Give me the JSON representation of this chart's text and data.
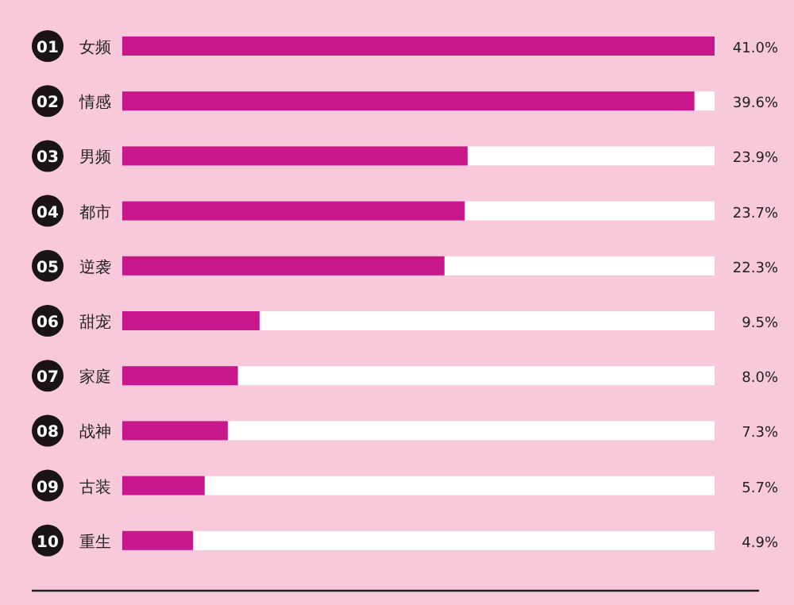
{
  "chart_data": {
    "type": "bar",
    "orientation": "horizontal",
    "categories": [
      "女频",
      "情感",
      "男频",
      "都市",
      "逆袭",
      "甜宠",
      "家庭",
      "战神",
      "古装",
      "重生"
    ],
    "values": [
      41.0,
      39.6,
      23.9,
      23.7,
      22.3,
      9.5,
      8.0,
      7.3,
      5.7,
      4.9
    ],
    "value_labels": [
      "41.0%",
      "39.6%",
      "23.9%",
      "23.7%",
      "22.3%",
      "9.5%",
      "8.0%",
      "7.3%",
      "5.7%",
      "4.9%"
    ],
    "annotations": [
      "01",
      "02",
      "03",
      "04",
      "05",
      "06",
      "07",
      "08",
      "09",
      "10"
    ],
    "color": "#c8168c"
  }
}
